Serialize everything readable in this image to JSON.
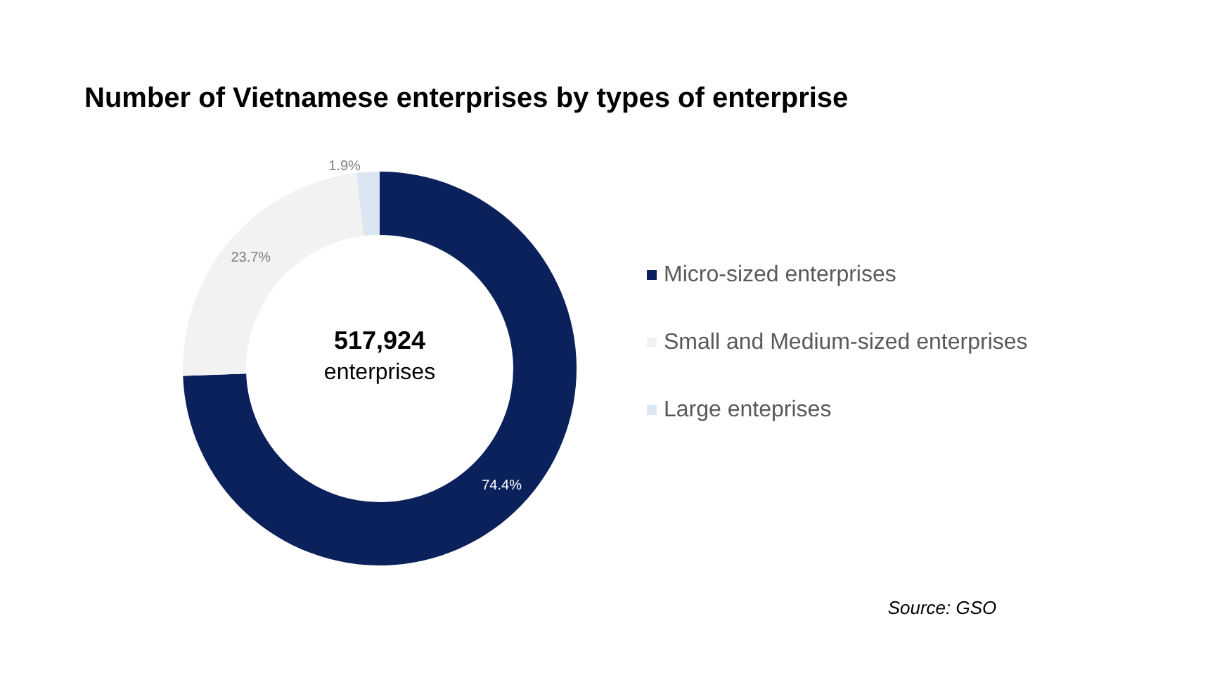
{
  "chart_data": {
    "type": "donut",
    "title": "Number of Vietnamese enterprises by types of enterprise",
    "categories": [
      "Micro-sized enterprises",
      "Small and Medium-sized enterprises",
      "Large enteprises"
    ],
    "values": [
      74.4,
      23.7,
      1.9
    ],
    "colors": [
      "#0b215c",
      "#f2f2f2",
      "#dce6f2"
    ],
    "value_labels": [
      "74.4%",
      "23.7%",
      "1.9%"
    ],
    "legend": "right",
    "annotations": [
      "517,924",
      "enterprises",
      "Source: GSO"
    ]
  }
}
